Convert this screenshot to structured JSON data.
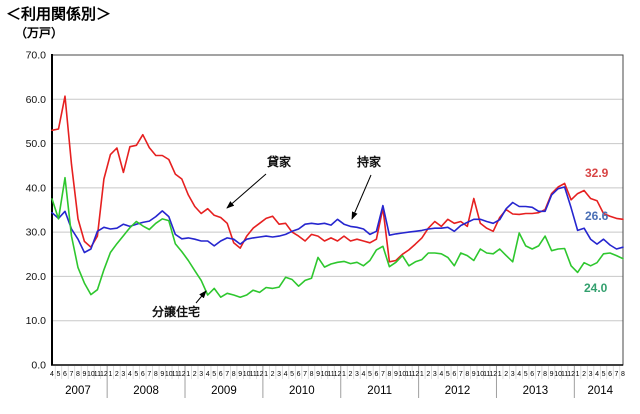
{
  "chart_data": {
    "type": "line",
    "title": "＜利用関係別＞",
    "unit_label": "（万戸）",
    "xlabel": "",
    "ylabel": "万戸",
    "ylim": [
      0,
      70
    ],
    "y_tick_step": 10,
    "y_tick_labels": [
      "0.0",
      "10.0",
      "20.0",
      "30.0",
      "40.0",
      "50.0",
      "60.0",
      "70.0"
    ],
    "grid": "horizontal",
    "legend_position": "inline-annotations",
    "x_years": [
      {
        "year": "2007",
        "months": [
          4,
          5,
          6,
          7,
          8,
          9,
          10,
          11,
          12
        ]
      },
      {
        "year": "2008",
        "months": [
          1,
          2,
          3,
          4,
          5,
          6,
          7,
          8,
          9,
          10,
          11,
          12
        ]
      },
      {
        "year": "2009",
        "months": [
          1,
          2,
          3,
          4,
          5,
          6,
          7,
          8,
          9,
          10,
          11,
          12
        ]
      },
      {
        "year": "2010",
        "months": [
          1,
          2,
          3,
          4,
          5,
          6,
          7,
          8,
          9,
          10,
          11,
          12
        ]
      },
      {
        "year": "2011",
        "months": [
          1,
          2,
          3,
          4,
          5,
          6,
          7,
          8,
          9,
          10,
          11,
          12
        ]
      },
      {
        "year": "2012",
        "months": [
          1,
          2,
          3,
          4,
          5,
          6,
          7,
          8,
          9,
          10,
          11,
          12
        ]
      },
      {
        "year": "2013",
        "months": [
          1,
          2,
          3,
          4,
          5,
          6,
          7,
          8,
          9,
          10,
          11,
          12
        ]
      },
      {
        "year": "2014",
        "months": [
          1,
          2,
          3,
          4,
          5,
          6,
          7,
          8
        ]
      }
    ],
    "series": [
      {
        "name": "貸家",
        "color": "#e62020",
        "label_color": "#d84545",
        "end_label": "32.9",
        "values": [
          53.0,
          53.3,
          60.7,
          45.3,
          33.0,
          27.9,
          26.6,
          29.1,
          42.0,
          47.5,
          49.0,
          43.5,
          49.3,
          49.6,
          52.0,
          49.1,
          47.3,
          47.3,
          46.4,
          43.1,
          42.0,
          38.4,
          35.8,
          34.2,
          35.3,
          33.8,
          33.3,
          32.0,
          27.6,
          26.4,
          29.1,
          30.9,
          32.0,
          33.1,
          33.6,
          31.8,
          32.0,
          30.0,
          29.1,
          28.0,
          29.5,
          29.1,
          28.0,
          28.7,
          28.0,
          29.1,
          28.0,
          28.4,
          28.0,
          27.6,
          28.4,
          35.4,
          23.3,
          23.6,
          25.0,
          26.0,
          27.3,
          28.7,
          30.9,
          32.4,
          31.3,
          32.9,
          32.0,
          32.4,
          31.3,
          37.6,
          32.0,
          30.9,
          30.2,
          33.3,
          35.1,
          34.1,
          34.0,
          34.2,
          34.2,
          34.4,
          35.1,
          38.7,
          40.2,
          41.0,
          37.3,
          38.7,
          39.4,
          37.6,
          37.1,
          34.2,
          33.6,
          33.1,
          32.9
        ]
      },
      {
        "name": "持家",
        "color": "#2626cf",
        "label_color": "#4a6fb5",
        "end_label": "26.6",
        "values": [
          34.4,
          33.1,
          34.7,
          30.7,
          28.4,
          25.4,
          26.2,
          30.2,
          31.1,
          30.7,
          30.9,
          31.8,
          31.3,
          31.8,
          32.2,
          32.5,
          33.5,
          34.8,
          33.5,
          29.5,
          28.5,
          28.7,
          28.4,
          28.0,
          28.0,
          26.9,
          28.0,
          28.7,
          28.4,
          27.3,
          28.4,
          28.7,
          28.9,
          29.1,
          28.9,
          29.1,
          29.5,
          30.2,
          30.7,
          31.8,
          32.0,
          31.8,
          32.0,
          31.6,
          32.9,
          31.8,
          31.3,
          31.1,
          30.7,
          29.5,
          30.2,
          36.0,
          29.3,
          29.6,
          29.8,
          30.0,
          30.2,
          30.4,
          30.7,
          30.9,
          30.9,
          31.1,
          30.2,
          31.5,
          32.2,
          32.9,
          32.9,
          32.4,
          32.0,
          32.8,
          35.3,
          36.7,
          35.8,
          35.8,
          35.6,
          34.7,
          34.7,
          38.4,
          39.8,
          40.2,
          35.5,
          30.4,
          30.9,
          28.4,
          27.3,
          28.4,
          27.1,
          26.2,
          26.6
        ]
      },
      {
        "name": "分譲住宅",
        "color": "#2ec72e",
        "label_color": "#33a06e",
        "end_label": "24.0",
        "values": [
          37.5,
          33.0,
          42.3,
          29.1,
          22.0,
          18.5,
          15.9,
          17.0,
          21.5,
          25.4,
          27.4,
          29.2,
          31.0,
          32.4,
          31.4,
          30.6,
          32.0,
          33.0,
          32.6,
          27.4,
          25.6,
          23.6,
          21.3,
          19.1,
          15.8,
          17.3,
          15.3,
          16.2,
          15.8,
          15.3,
          15.8,
          16.9,
          16.4,
          17.5,
          17.3,
          17.6,
          19.8,
          19.3,
          17.8,
          19.1,
          19.6,
          24.3,
          22.1,
          22.8,
          23.2,
          23.4,
          22.9,
          23.2,
          22.4,
          23.6,
          26.0,
          26.8,
          22.2,
          23.2,
          24.7,
          22.4,
          23.3,
          23.8,
          25.3,
          25.3,
          25.1,
          24.3,
          22.4,
          25.3,
          24.7,
          23.6,
          26.2,
          25.3,
          25.1,
          26.2,
          24.7,
          23.3,
          29.8,
          26.9,
          26.2,
          26.9,
          29.1,
          25.8,
          26.2,
          26.3,
          22.4,
          20.9,
          23.1,
          22.4,
          23.1,
          25.1,
          25.3,
          24.7,
          24.0
        ]
      }
    ]
  }
}
